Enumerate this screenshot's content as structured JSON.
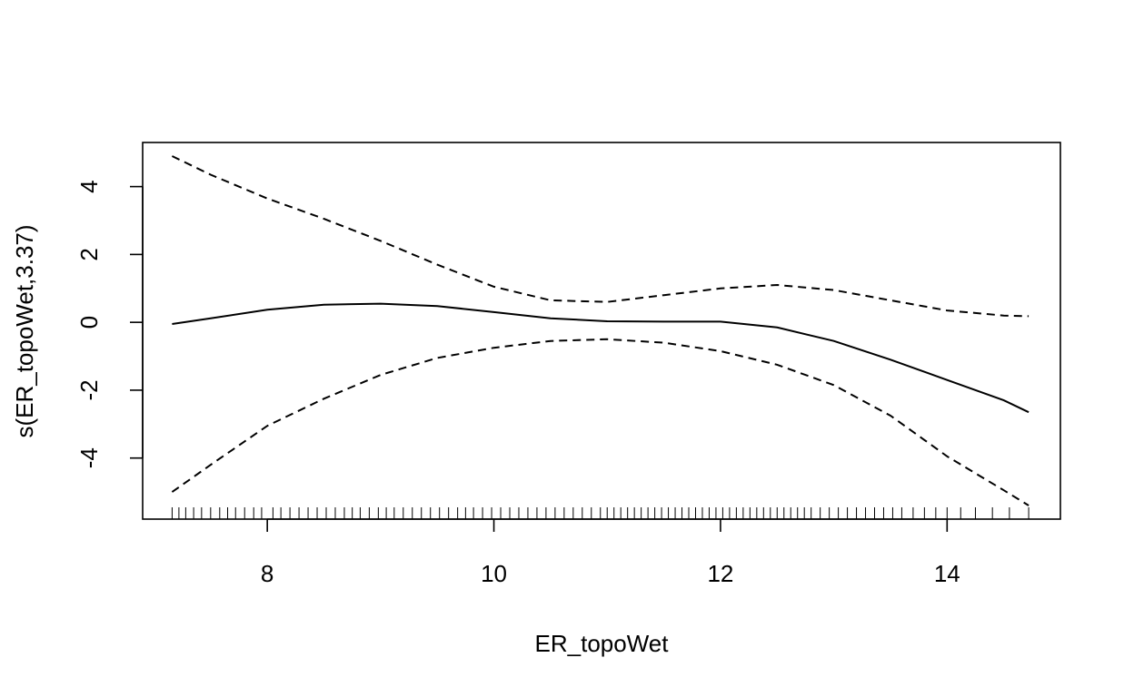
{
  "chart_data": {
    "type": "line",
    "title": "",
    "xlabel": "ER_topoWet",
    "ylabel": "s(ER_topoWet,3.37)",
    "xlim": [
      6.9,
      15.0
    ],
    "ylim": [
      -5.8,
      5.3
    ],
    "x_ticks": [
      8,
      10,
      12,
      14
    ],
    "y_ticks": [
      -4,
      -2,
      0,
      2,
      4
    ],
    "grid": false,
    "legend": "none",
    "series": [
      {
        "style": "solid",
        "x": [
          7.16,
          7.5,
          8.0,
          8.5,
          9.0,
          9.5,
          10.0,
          10.5,
          11.0,
          11.5,
          12.0,
          12.5,
          13.0,
          13.5,
          14.0,
          14.5,
          14.72
        ],
        "y": [
          -0.05,
          0.12,
          0.37,
          0.52,
          0.55,
          0.48,
          0.3,
          0.12,
          0.03,
          0.02,
          0.02,
          -0.15,
          -0.55,
          -1.1,
          -1.7,
          -2.3,
          -2.65
        ]
      },
      {
        "style": "dashed",
        "x": [
          7.16,
          7.5,
          8.0,
          8.5,
          9.0,
          9.5,
          10.0,
          10.5,
          11.0,
          11.5,
          12.0,
          12.5,
          13.0,
          13.5,
          14.0,
          14.5,
          14.72
        ],
        "y": [
          4.9,
          4.35,
          3.65,
          3.05,
          2.4,
          1.7,
          1.05,
          0.65,
          0.6,
          0.8,
          1.0,
          1.1,
          0.95,
          0.65,
          0.35,
          0.2,
          0.18
        ]
      },
      {
        "style": "dashed",
        "x": [
          7.16,
          7.5,
          8.0,
          8.5,
          9.0,
          9.5,
          10.0,
          10.5,
          11.0,
          11.5,
          12.0,
          12.5,
          13.0,
          13.5,
          14.0,
          14.5,
          14.72
        ],
        "y": [
          -5.0,
          -4.2,
          -3.05,
          -2.25,
          -1.55,
          -1.05,
          -0.75,
          -0.55,
          -0.5,
          -0.6,
          -0.85,
          -1.25,
          -1.85,
          -2.75,
          -3.95,
          -4.95,
          -5.4
        ]
      }
    ],
    "rug": [
      7.16,
      7.22,
      7.28,
      7.35,
      7.42,
      7.5,
      7.58,
      7.65,
      7.72,
      7.8,
      7.88,
      7.95,
      8.05,
      8.12,
      8.2,
      8.28,
      8.36,
      8.44,
      8.52,
      8.6,
      8.68,
      8.75,
      8.82,
      8.9,
      8.98,
      9.05,
      9.12,
      9.2,
      9.28,
      9.36,
      9.44,
      9.52,
      9.6,
      9.68,
      9.75,
      9.82,
      9.9,
      9.98,
      10.06,
      10.14,
      10.22,
      10.3,
      10.38,
      10.46,
      10.54,
      10.62,
      10.7,
      10.78,
      10.86,
      10.94,
      11.0,
      11.06,
      11.12,
      11.18,
      11.24,
      11.3,
      11.36,
      11.42,
      11.48,
      11.54,
      11.6,
      11.66,
      11.72,
      11.78,
      11.84,
      11.9,
      11.96,
      12.02,
      12.08,
      12.14,
      12.2,
      12.26,
      12.32,
      12.38,
      12.44,
      12.5,
      12.56,
      12.62,
      12.68,
      12.74,
      12.8,
      12.88,
      12.96,
      13.04,
      13.12,
      13.2,
      13.28,
      13.36,
      13.44,
      13.52,
      13.6,
      13.7,
      13.8,
      13.9,
      14.0,
      14.12,
      14.25,
      14.4,
      14.55,
      14.72
    ]
  }
}
